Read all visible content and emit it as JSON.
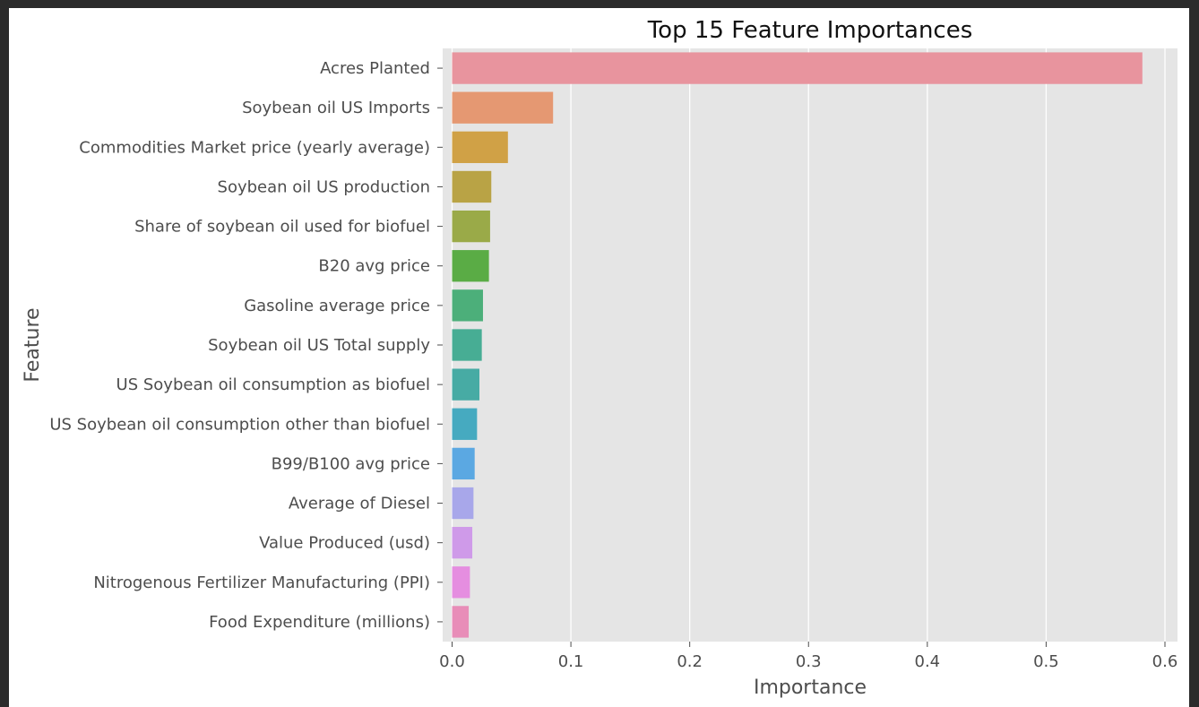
{
  "chart_data": {
    "type": "bar",
    "orientation": "horizontal",
    "title": "Top 15 Feature Importances",
    "xlabel": "Importance",
    "ylabel": "Feature",
    "xlim": [
      0.0,
      0.6
    ],
    "x_ticks": [
      "0.0",
      "0.1",
      "0.2",
      "0.3",
      "0.4",
      "0.5",
      "0.6"
    ],
    "grid": true,
    "categories": [
      "Acres Planted",
      "Soybean oil US Imports",
      "Commodities Market price (yearly average)",
      "Soybean oil US production",
      "Share of soybean oil used for biofuel",
      "B20 avg price",
      "Gasoline average price",
      "Soybean oil US Total supply",
      "US Soybean oil consumption as biofuel",
      "US Soybean oil consumption other than biofuel",
      "B99/B100 avg price",
      "Average of Diesel",
      "Value Produced (usd)",
      "Nitrogenous Fertilizer Manufacturing (PPI)",
      "Food Expenditure (millions)"
    ],
    "values": [
      0.581,
      0.085,
      0.047,
      0.033,
      0.032,
      0.031,
      0.026,
      0.025,
      0.023,
      0.021,
      0.019,
      0.018,
      0.017,
      0.015,
      0.014
    ],
    "colors": [
      "#e8949e",
      "#e59872",
      "#d0a146",
      "#b9a345",
      "#9aaa48",
      "#5aac45",
      "#4caf7a",
      "#47ad94",
      "#47aba4",
      "#46aac0",
      "#5ba8e2",
      "#a8a7ea",
      "#cf9ae9",
      "#e58ee0",
      "#e88db8"
    ],
    "plot_background": "#e5e5e5",
    "grid_color": "#ffffff"
  }
}
